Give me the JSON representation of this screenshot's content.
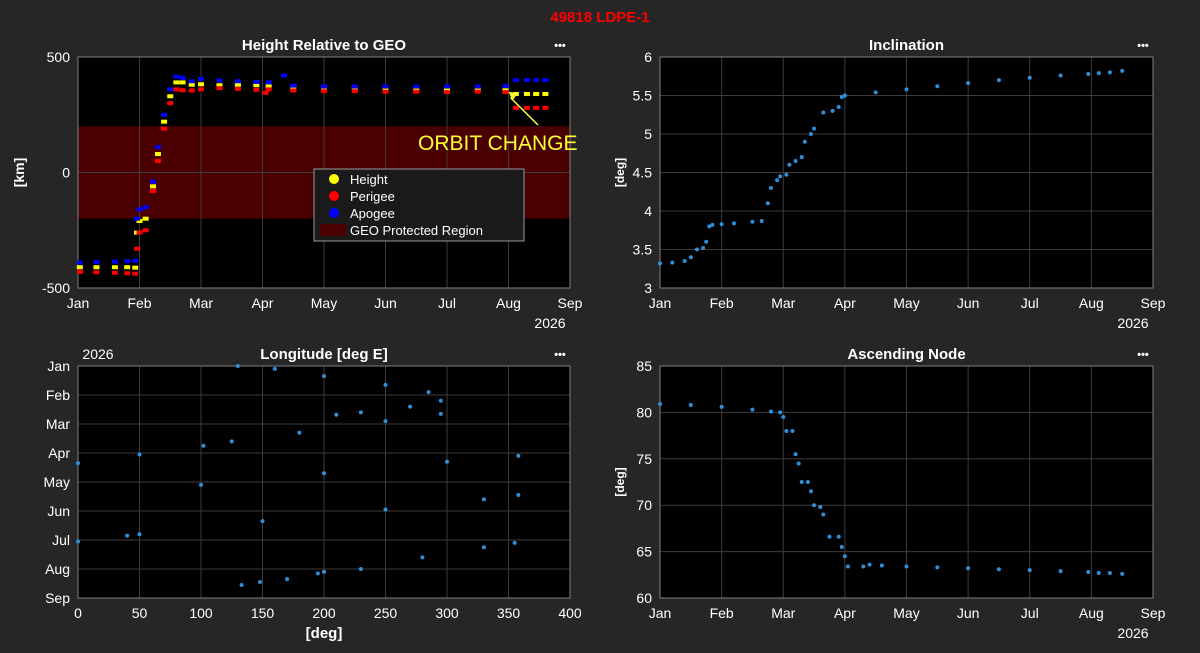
{
  "figure_title": "49818 LDPE-1",
  "menu_glyph": "•••",
  "month_ticks": [
    "Jan",
    "Feb",
    "Mar",
    "Apr",
    "May",
    "Jun",
    "Jul",
    "Aug",
    "Sep"
  ],
  "year_label": "2026",
  "colors": {
    "bg": "#262626",
    "axes": "#000000",
    "grid": "#3c3c3c",
    "text": "#ffffff",
    "title_red": "#ff0000",
    "height": "#ffff00",
    "perigee": "#ff0000",
    "apogee": "#0000ff",
    "geo": "#4a0000",
    "point": "#2f8fd8",
    "annotation": "#ffff33"
  },
  "chart_data": [
    {
      "id": "height",
      "type": "scatter",
      "title": "Height Relative to GEO",
      "xlabel": "",
      "ylabel": "[km]",
      "x_type": "month",
      "xlim": [
        0,
        8
      ],
      "ylim": [
        -500,
        500
      ],
      "yticks": [
        -500,
        0,
        500
      ],
      "x_year_label": "2026",
      "geo_region": [
        -200,
        200
      ],
      "legend": {
        "position": "center",
        "entries": [
          "Height",
          "Perigee",
          "Apogee",
          "GEO Protected Region"
        ]
      },
      "annotation": {
        "text": "ORBIT CHANGE",
        "arrow_to": [
          7.0,
          350
        ]
      },
      "series": [
        {
          "name": "Height",
          "color": "#ffff00",
          "points": [
            [
              0.03,
              -410
            ],
            [
              0.3,
              -410
            ],
            [
              0.6,
              -410
            ],
            [
              0.8,
              -410
            ],
            [
              0.93,
              -412
            ],
            [
              0.96,
              -260
            ],
            [
              1.0,
              -210
            ],
            [
              1.1,
              -200
            ],
            [
              1.22,
              -60
            ],
            [
              1.3,
              80
            ],
            [
              1.4,
              220
            ],
            [
              1.5,
              330
            ],
            [
              1.6,
              390
            ],
            [
              1.7,
              390
            ],
            [
              1.85,
              380
            ],
            [
              2.0,
              382
            ],
            [
              2.3,
              378
            ],
            [
              2.6,
              380
            ],
            [
              2.9,
              378
            ],
            [
              3.1,
              374
            ],
            [
              3.5,
              368
            ],
            [
              4.0,
              365
            ],
            [
              4.5,
              364
            ],
            [
              5.0,
              362
            ],
            [
              5.5,
              360
            ],
            [
              6.0,
              360
            ],
            [
              6.5,
              358
            ],
            [
              6.95,
              356
            ],
            [
              7.12,
              340
            ],
            [
              7.3,
              340
            ],
            [
              7.45,
              340
            ],
            [
              7.6,
              340
            ]
          ]
        },
        {
          "name": "Perigee",
          "color": "#ff0000",
          "points": [
            [
              0.03,
              -430
            ],
            [
              0.3,
              -432
            ],
            [
              0.6,
              -434
            ],
            [
              0.8,
              -436
            ],
            [
              0.93,
              -438
            ],
            [
              0.96,
              -330
            ],
            [
              1.0,
              -260
            ],
            [
              1.1,
              -250
            ],
            [
              1.22,
              -80
            ],
            [
              1.3,
              50
            ],
            [
              1.4,
              190
            ],
            [
              1.5,
              300
            ],
            [
              1.6,
              360
            ],
            [
              1.7,
              356
            ],
            [
              1.85,
              355
            ],
            [
              2.0,
              360
            ],
            [
              2.3,
              365
            ],
            [
              2.6,
              362
            ],
            [
              2.9,
              358
            ],
            [
              3.05,
              345
            ],
            [
              3.1,
              360
            ],
            [
              3.5,
              355
            ],
            [
              4.0,
              352
            ],
            [
              4.5,
              352
            ],
            [
              5.0,
              350
            ],
            [
              5.5,
              350
            ],
            [
              6.0,
              348
            ],
            [
              6.5,
              350
            ],
            [
              6.95,
              348
            ],
            [
              7.12,
              280
            ],
            [
              7.3,
              280
            ],
            [
              7.45,
              280
            ],
            [
              7.6,
              280
            ]
          ]
        },
        {
          "name": "Apogee",
          "color": "#0000ff",
          "points": [
            [
              0.03,
              -390
            ],
            [
              0.3,
              -388
            ],
            [
              0.6,
              -386
            ],
            [
              0.8,
              -384
            ],
            [
              0.93,
              -382
            ],
            [
              0.96,
              -200
            ],
            [
              1.0,
              -160
            ],
            [
              1.1,
              -150
            ],
            [
              1.22,
              -40
            ],
            [
              1.3,
              110
            ],
            [
              1.4,
              250
            ],
            [
              1.5,
              360
            ],
            [
              1.6,
              415
            ],
            [
              1.7,
              410
            ],
            [
              1.85,
              395
            ],
            [
              2.0,
              405
            ],
            [
              2.3,
              398
            ],
            [
              2.6,
              395
            ],
            [
              2.9,
              392
            ],
            [
              3.1,
              390
            ],
            [
              3.35,
              420
            ],
            [
              3.5,
              376
            ],
            [
              4.0,
              372
            ],
            [
              4.5,
              372
            ],
            [
              5.0,
              372
            ],
            [
              5.5,
              372
            ],
            [
              6.0,
              372
            ],
            [
              6.5,
              372
            ],
            [
              6.95,
              374
            ],
            [
              7.12,
              400
            ],
            [
              7.3,
              400
            ],
            [
              7.45,
              400
            ],
            [
              7.6,
              400
            ]
          ]
        }
      ]
    },
    {
      "id": "inclination",
      "type": "scatter",
      "title": "Inclination",
      "xlabel": "",
      "ylabel": "[deg]",
      "x_type": "month",
      "xlim": [
        0,
        8
      ],
      "ylim": [
        3,
        6
      ],
      "yticks": [
        3,
        3.5,
        4,
        4.5,
        5,
        5.5,
        6
      ],
      "x_year_label": "2026",
      "series": [
        {
          "name": "",
          "color": "#2f8fd8",
          "points": [
            [
              0.0,
              3.32
            ],
            [
              0.2,
              3.33
            ],
            [
              0.4,
              3.35
            ],
            [
              0.5,
              3.4
            ],
            [
              0.6,
              3.5
            ],
            [
              0.7,
              3.52
            ],
            [
              0.75,
              3.6
            ],
            [
              0.8,
              3.8
            ],
            [
              0.85,
              3.82
            ],
            [
              1.0,
              3.83
            ],
            [
              1.2,
              3.84
            ],
            [
              1.5,
              3.86
            ],
            [
              1.65,
              3.87
            ],
            [
              1.75,
              4.1
            ],
            [
              1.8,
              4.3
            ],
            [
              1.9,
              4.4
            ],
            [
              1.95,
              4.45
            ],
            [
              2.05,
              4.47
            ],
            [
              2.1,
              4.6
            ],
            [
              2.2,
              4.65
            ],
            [
              2.3,
              4.7
            ],
            [
              2.35,
              4.9
            ],
            [
              2.45,
              5.0
            ],
            [
              2.5,
              5.07
            ],
            [
              2.65,
              5.28
            ],
            [
              2.8,
              5.3
            ],
            [
              2.9,
              5.35
            ],
            [
              2.95,
              5.48
            ],
            [
              3.0,
              5.5
            ],
            [
              3.5,
              5.54
            ],
            [
              4.0,
              5.58
            ],
            [
              4.5,
              5.62
            ],
            [
              5.0,
              5.66
            ],
            [
              5.5,
              5.7
            ],
            [
              6.0,
              5.73
            ],
            [
              6.5,
              5.76
            ],
            [
              6.95,
              5.78
            ],
            [
              7.12,
              5.79
            ],
            [
              7.3,
              5.8
            ],
            [
              7.5,
              5.82
            ]
          ]
        }
      ]
    },
    {
      "id": "longitude",
      "type": "scatter",
      "title": "Longitude [deg E]",
      "xlabel": "[deg]",
      "ylabel": "",
      "x_type": "linear",
      "xlim": [
        0,
        400
      ],
      "xticks": [
        0,
        50,
        100,
        150,
        200,
        250,
        300,
        350,
        400
      ],
      "y_type": "month_reversed",
      "ylim": [
        0,
        8
      ],
      "y_year_label": "2026",
      "series": [
        {
          "name": "",
          "color": "#2f8fd8",
          "points": [
            [
              130,
              0.0
            ],
            [
              160,
              0.1
            ],
            [
              200,
              0.35
            ],
            [
              250,
              0.65
            ],
            [
              285,
              0.9
            ],
            [
              295,
              1.2
            ],
            [
              270,
              1.4
            ],
            [
              230,
              1.6
            ],
            [
              210,
              1.68
            ],
            [
              125,
              2.6
            ],
            [
              180,
              2.3
            ],
            [
              250,
              1.9
            ],
            [
              295,
              1.65
            ],
            [
              102,
              2.75
            ],
            [
              50,
              3.05
            ],
            [
              0,
              3.35
            ],
            [
              100,
              4.1
            ],
            [
              200,
              3.7
            ],
            [
              300,
              3.3
            ],
            [
              358,
              3.1
            ],
            [
              0,
              6.05
            ],
            [
              40,
              5.85
            ],
            [
              50,
              5.8
            ],
            [
              150,
              5.35
            ],
            [
              250,
              4.95
            ],
            [
              330,
              4.6
            ],
            [
              358,
              4.45
            ],
            [
              230,
              7.0
            ],
            [
              280,
              6.6
            ],
            [
              330,
              6.25
            ],
            [
              355,
              6.1
            ],
            [
              200,
              7.1
            ],
            [
              195,
              7.15
            ],
            [
              170,
              7.35
            ],
            [
              148,
              7.45
            ],
            [
              133,
              7.55
            ]
          ]
        }
      ]
    },
    {
      "id": "ascending_node",
      "type": "scatter",
      "title": "Ascending Node",
      "xlabel": "",
      "ylabel": "[deg]",
      "x_type": "month",
      "xlim": [
        0,
        8
      ],
      "ylim": [
        60,
        85
      ],
      "yticks": [
        60,
        65,
        70,
        75,
        80,
        85
      ],
      "x_year_label": "2026",
      "series": [
        {
          "name": "",
          "color": "#2f8fd8",
          "points": [
            [
              0.0,
              80.9
            ],
            [
              0.5,
              80.8
            ],
            [
              1.0,
              80.6
            ],
            [
              1.5,
              80.3
            ],
            [
              1.8,
              80.1
            ],
            [
              1.95,
              80.0
            ],
            [
              2.0,
              79.5
            ],
            [
              2.05,
              78.0
            ],
            [
              2.15,
              78.0
            ],
            [
              2.2,
              75.5
            ],
            [
              2.25,
              74.5
            ],
            [
              2.3,
              72.5
            ],
            [
              2.4,
              72.5
            ],
            [
              2.45,
              71.5
            ],
            [
              2.5,
              70.0
            ],
            [
              2.6,
              69.8
            ],
            [
              2.65,
              69.0
            ],
            [
              2.75,
              66.6
            ],
            [
              2.9,
              66.6
            ],
            [
              2.95,
              65.5
            ],
            [
              3.0,
              64.5
            ],
            [
              3.05,
              63.4
            ],
            [
              3.3,
              63.4
            ],
            [
              3.4,
              63.6
            ],
            [
              3.6,
              63.5
            ],
            [
              4.0,
              63.4
            ],
            [
              4.5,
              63.3
            ],
            [
              5.0,
              63.2
            ],
            [
              5.5,
              63.1
            ],
            [
              6.0,
              63.0
            ],
            [
              6.5,
              62.9
            ],
            [
              6.95,
              62.8
            ],
            [
              7.12,
              62.7
            ],
            [
              7.3,
              62.7
            ],
            [
              7.5,
              62.6
            ]
          ]
        }
      ]
    }
  ]
}
